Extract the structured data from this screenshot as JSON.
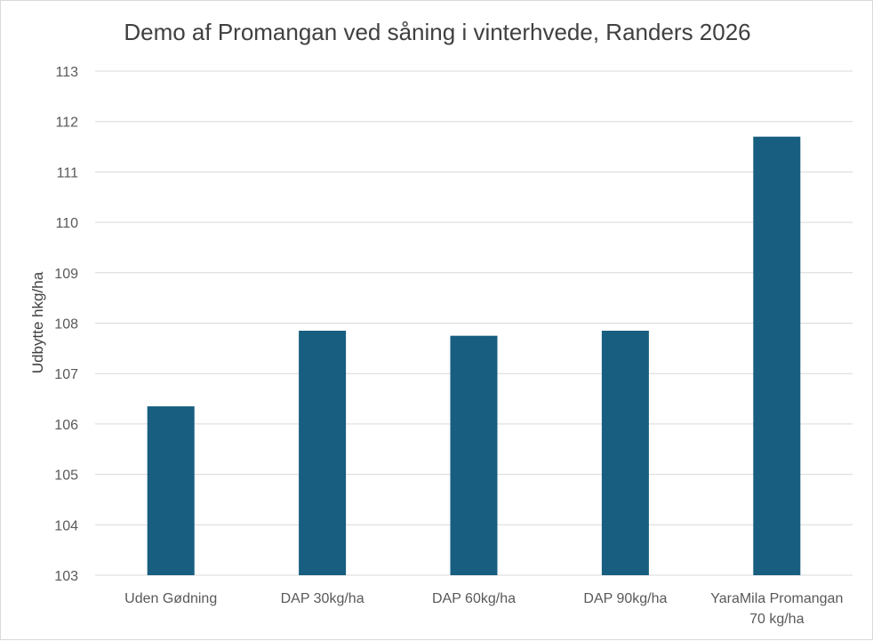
{
  "chart_data": {
    "type": "bar",
    "title": "Demo af Promangan ved såning i vinterhvede, Randers 2026",
    "xlabel": "",
    "ylabel": "Udbytte hkg/ha",
    "categories": [
      [
        "Uden Gødning"
      ],
      [
        "DAP 30kg/ha"
      ],
      [
        "DAP 60kg/ha"
      ],
      [
        "DAP 90kg/ha"
      ],
      [
        "YaraMila Promangan",
        "70 kg/ha"
      ]
    ],
    "values": [
      106.35,
      107.85,
      107.75,
      107.85,
      111.7
    ],
    "ylim": [
      103,
      113
    ],
    "yticks": [
      103,
      104,
      105,
      106,
      107,
      108,
      109,
      110,
      111,
      112,
      113
    ],
    "grid": true,
    "legend": "none",
    "bar_color": "#175e80",
    "gridline_color": "#d9d9d9"
  }
}
